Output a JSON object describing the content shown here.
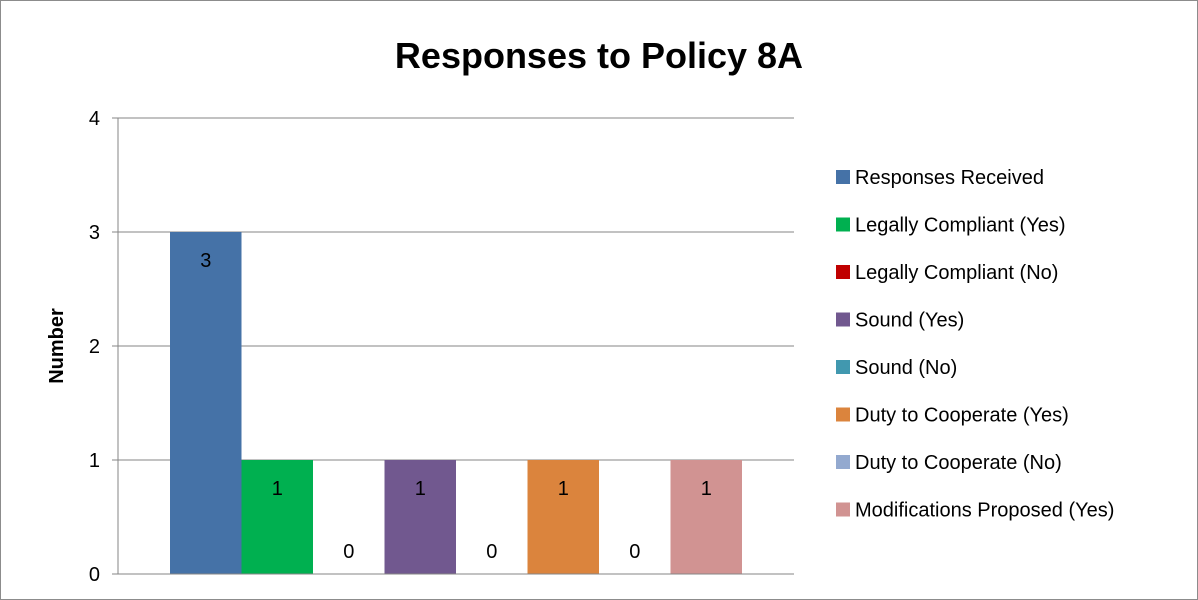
{
  "chart_data": {
    "type": "bar",
    "title": "Responses to Policy 8A",
    "ylabel": "Number",
    "xlabel": "",
    "ylim": [
      0,
      4
    ],
    "yticks": [
      0,
      1,
      2,
      3,
      4
    ],
    "grid": true,
    "legend_position": "right",
    "series": [
      {
        "name": "Responses Received",
        "value": 3,
        "color": "#4572A7"
      },
      {
        "name": "Legally Compliant (Yes)",
        "value": 1,
        "color": "#00B050"
      },
      {
        "name": "Legally Compliant (No)",
        "value": 0,
        "color": "#C00000"
      },
      {
        "name": "Sound (Yes)",
        "value": 1,
        "color": "#71588F"
      },
      {
        "name": "Sound (No)",
        "value": 0,
        "color": "#4198AF"
      },
      {
        "name": "Duty to Cooperate (Yes)",
        "value": 1,
        "color": "#DB843D"
      },
      {
        "name": "Duty to Cooperate (No)",
        "value": 0,
        "color": "#93A9CF"
      },
      {
        "name": "Modifications Proposed (Yes)",
        "value": 1,
        "color": "#D19392"
      }
    ]
  }
}
